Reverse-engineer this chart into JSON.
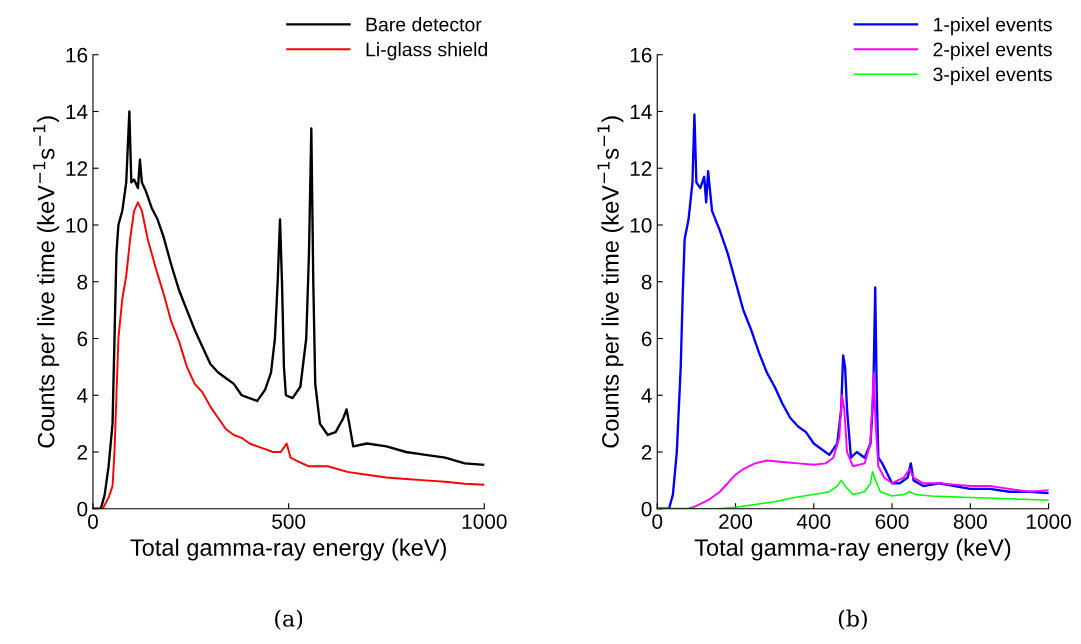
{
  "chart_data": [
    {
      "type": "line",
      "xlabel": "Total gamma-ray energy (keV)",
      "ylabel": "Counts per live time (keV$^{−1}$s$^{−1}$)",
      "xlim": [
        0,
        1000
      ],
      "ylim": [
        0,
        16
      ],
      "xticks": [
        0,
        500,
        1000
      ],
      "yticks": [
        0,
        2,
        4,
        6,
        8,
        10,
        12,
        14,
        16
      ],
      "grid": false,
      "legend": "top right",
      "annotations": [
        "(a)"
      ],
      "series": [
        {
          "name": "Bare detector",
          "color": "#000000",
          "x": [
            0,
            20,
            30,
            40,
            50,
            55,
            60,
            65,
            75,
            85,
            93,
            98,
            105,
            115,
            120,
            125,
            135,
            150,
            165,
            180,
            200,
            220,
            240,
            260,
            280,
            300,
            320,
            340,
            360,
            380,
            400,
            420,
            440,
            455,
            465,
            472,
            478,
            483,
            488,
            493,
            510,
            530,
            545,
            552,
            558,
            563,
            568,
            580,
            600,
            620,
            640,
            648,
            655,
            665,
            700,
            750,
            800,
            850,
            900,
            950,
            1000
          ],
          "values": [
            0,
            0,
            0.5,
            1.5,
            3,
            6,
            9,
            10,
            10.5,
            11.5,
            14,
            11.5,
            11.6,
            11.3,
            12.3,
            11.5,
            11.2,
            10.6,
            10.2,
            9.6,
            8.6,
            7.7,
            7.0,
            6.3,
            5.7,
            5.1,
            4.8,
            4.6,
            4.4,
            4.0,
            3.9,
            3.8,
            4.2,
            4.8,
            6.0,
            8,
            10.2,
            8,
            5,
            4.0,
            3.9,
            4.3,
            6,
            9,
            13.4,
            8,
            4.4,
            3.0,
            2.6,
            2.7,
            3.2,
            3.5,
            3.0,
            2.2,
            2.3,
            2.2,
            2.0,
            1.9,
            1.8,
            1.6,
            1.55
          ]
        },
        {
          "name": "Li-glass shield",
          "color": "#ff0000",
          "x": [
            0,
            25,
            40,
            50,
            55,
            60,
            65,
            75,
            85,
            95,
            105,
            115,
            125,
            140,
            160,
            180,
            200,
            220,
            240,
            260,
            280,
            300,
            320,
            340,
            360,
            380,
            400,
            420,
            440,
            460,
            480,
            495,
            505,
            520,
            550,
            600,
            650,
            700,
            750,
            800,
            850,
            900,
            950,
            1000
          ],
          "values": [
            0,
            0,
            0.4,
            0.8,
            2,
            4,
            6.0,
            7.4,
            8.2,
            9.5,
            10.5,
            10.8,
            10.5,
            9.5,
            8.5,
            7.6,
            6.6,
            5.9,
            5.0,
            4.4,
            4.1,
            3.6,
            3.2,
            2.8,
            2.6,
            2.5,
            2.3,
            2.2,
            2.1,
            2.0,
            2.0,
            2.3,
            1.8,
            1.7,
            1.5,
            1.5,
            1.3,
            1.2,
            1.1,
            1.05,
            1.0,
            0.95,
            0.88,
            0.85
          ]
        }
      ]
    },
    {
      "type": "line",
      "xlabel": "Total gamma-ray energy (keV)",
      "ylabel": "Counts per live time (keV$^{−1}$s$^{−1}$)",
      "xlim": [
        0,
        1000
      ],
      "ylim": [
        0,
        16
      ],
      "xticks": [
        0,
        200,
        400,
        600,
        800,
        1000
      ],
      "yticks": [
        0,
        2,
        4,
        6,
        8,
        10,
        12,
        14,
        16
      ],
      "grid": false,
      "legend": "top right",
      "annotations": [
        "(b)"
      ],
      "series": [
        {
          "name": "1-pixel events",
          "color": "#0000ff",
          "x": [
            0,
            30,
            40,
            50,
            60,
            65,
            70,
            80,
            90,
            95,
            100,
            110,
            120,
            125,
            130,
            140,
            160,
            180,
            200,
            220,
            240,
            260,
            280,
            300,
            320,
            340,
            360,
            380,
            400,
            420,
            440,
            460,
            470,
            475,
            480,
            485,
            495,
            510,
            530,
            545,
            552,
            557,
            561,
            565,
            575,
            600,
            620,
            640,
            648,
            655,
            680,
            720,
            760,
            800,
            850,
            900,
            950,
            1000
          ],
          "values": [
            0,
            0,
            0.5,
            2,
            5,
            7.5,
            9.5,
            10.2,
            11.5,
            13.9,
            11.5,
            11.3,
            11.7,
            10.8,
            11.9,
            10.5,
            9.8,
            9.0,
            8.0,
            7.0,
            6.3,
            5.5,
            4.8,
            4.3,
            3.7,
            3.2,
            2.9,
            2.7,
            2.3,
            2.1,
            1.9,
            2.3,
            3.5,
            5.4,
            5.0,
            3.5,
            1.8,
            2.0,
            1.8,
            2.3,
            4,
            7.8,
            4,
            1.8,
            1.6,
            0.9,
            0.9,
            1.1,
            1.6,
            1.0,
            0.8,
            0.9,
            0.8,
            0.7,
            0.7,
            0.6,
            0.6,
            0.55
          ]
        },
        {
          "name": "2-pixel events",
          "color": "#ff00ff",
          "x": [
            0,
            80,
            100,
            130,
            160,
            180,
            200,
            220,
            250,
            280,
            320,
            360,
            400,
            430,
            450,
            465,
            472,
            478,
            485,
            500,
            530,
            545,
            553,
            558,
            565,
            580,
            600,
            630,
            645,
            655,
            680,
            720,
            760,
            800,
            850,
            900,
            950,
            1000
          ],
          "values": [
            0,
            0,
            0.1,
            0.3,
            0.6,
            0.9,
            1.2,
            1.4,
            1.6,
            1.7,
            1.65,
            1.6,
            1.55,
            1.6,
            1.8,
            2.5,
            4.0,
            3.5,
            2.0,
            1.5,
            1.6,
            2.3,
            4.8,
            3,
            1.5,
            1.1,
            0.9,
            1.1,
            1.4,
            1.1,
            0.9,
            0.9,
            0.85,
            0.8,
            0.8,
            0.7,
            0.6,
            0.65
          ]
        },
        {
          "name": "3-pixel events",
          "color": "#00ff00",
          "x": [
            0,
            150,
            200,
            250,
            300,
            350,
            400,
            440,
            460,
            470,
            480,
            500,
            530,
            545,
            550,
            558,
            570,
            600,
            630,
            645,
            660,
            700,
            800,
            900,
            1000
          ],
          "values": [
            0,
            0,
            0.05,
            0.15,
            0.25,
            0.4,
            0.5,
            0.6,
            0.8,
            1.0,
            0.8,
            0.5,
            0.6,
            0.9,
            1.3,
            1.0,
            0.6,
            0.45,
            0.5,
            0.6,
            0.5,
            0.45,
            0.4,
            0.35,
            0.3
          ]
        }
      ]
    }
  ]
}
